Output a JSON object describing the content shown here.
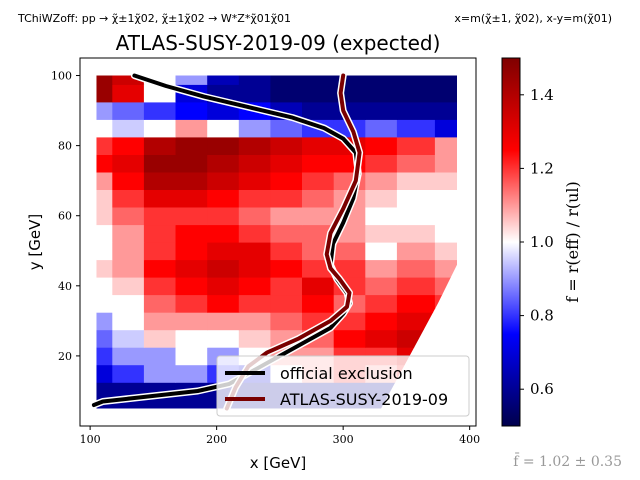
{
  "header": {
    "process_label": "TChiWZoff: pp → χ̃±1χ̃02, χ̃±1χ̃02 → W*Z*χ̃01χ̃01",
    "axis_definition": "x=m(χ̃±1, χ̃02), x-y=m(χ̃01)"
  },
  "footer": {
    "mean_ratio": "f̄ = 1.02 ± 0.35"
  },
  "colors": {
    "official_line": "#000000",
    "analysis_line": "#7a0000",
    "cmap_low": "#00004c",
    "cmap_mid": "#ffffff",
    "cmap_high": "#7f0000"
  },
  "chart_data": {
    "type": "heatmap",
    "title": "ATLAS-SUSY-2019-09 (expected)",
    "xlabel": "x [GeV]",
    "ylabel": "y [GeV]",
    "xlim": [
      92,
      405
    ],
    "ylim": [
      0,
      105
    ],
    "xticks": [
      100,
      200,
      300,
      400
    ],
    "yticks": [
      20,
      40,
      60,
      80,
      100
    ],
    "colorbar": {
      "label": "f = r(eff) / r(ul)",
      "range": [
        0.5,
        1.5
      ],
      "ticks": [
        "0.6",
        "0.8",
        "1.0",
        "1.2",
        "1.4"
      ],
      "tick_values": [
        0.6,
        0.8,
        1.0,
        1.2,
        1.4
      ]
    },
    "legend": {
      "location": "lower-right",
      "entries": [
        "official exclusion",
        "ATLAS-SUSY-2019-09"
      ]
    },
    "grid_x": [
      105,
      130,
      155,
      180,
      205,
      230,
      255,
      280,
      305,
      330,
      355,
      390
    ],
    "grid_y": [
      5,
      10,
      15,
      20,
      25,
      30,
      35,
      40,
      45,
      50,
      55,
      60,
      65,
      70,
      75,
      80,
      85,
      90,
      95,
      100
    ],
    "values": [
      [
        0.6,
        0.6,
        0.6,
        0.6,
        0.6,
        0.6,
        0.6,
        0.6,
        0.6,
        0.6,
        0.6,
        0.6
      ],
      [
        0.6,
        0.6,
        0.6,
        0.6,
        0.6,
        0.6,
        0.6,
        0.6,
        0.6,
        0.6,
        0.6,
        0.6
      ],
      [
        0.7,
        0.8,
        0.9,
        0.9,
        0.8,
        0.7,
        1.0,
        1.1,
        1.2,
        1.1,
        1.2,
        1.1
      ],
      [
        0.8,
        0.9,
        0.9,
        1.0,
        0.9,
        1.0,
        1.1,
        1.1,
        1.2,
        1.2,
        1.3,
        1.2
      ],
      [
        0.85,
        0.95,
        1.05,
        1.0,
        1.0,
        1.05,
        1.1,
        1.15,
        1.25,
        1.3,
        1.35,
        1.3
      ],
      [
        0.9,
        1.0,
        1.1,
        1.1,
        1.1,
        1.1,
        1.15,
        1.2,
        1.2,
        1.25,
        1.3,
        1.25
      ],
      [
        1.0,
        1.0,
        1.15,
        1.2,
        1.25,
        1.2,
        1.2,
        1.25,
        1.15,
        1.2,
        1.25,
        1.2
      ],
      [
        1.0,
        1.05,
        1.2,
        1.25,
        1.3,
        1.25,
        1.2,
        1.3,
        1.2,
        1.15,
        1.2,
        1.15
      ],
      [
        1.05,
        1.1,
        1.25,
        1.3,
        1.35,
        1.3,
        1.25,
        1.2,
        1.2,
        1.1,
        1.15,
        1.1
      ],
      [
        1.0,
        1.1,
        1.2,
        1.25,
        1.3,
        1.3,
        1.2,
        1.15,
        1.15,
        1.0,
        1.1,
        1.05
      ],
      [
        1.0,
        1.1,
        1.2,
        1.25,
        1.25,
        1.2,
        1.15,
        1.15,
        1.1,
        1.05,
        1.05,
        1.0
      ],
      [
        1.05,
        1.15,
        1.2,
        1.2,
        1.2,
        1.15,
        1.1,
        1.1,
        1.1,
        1.0,
        1.0,
        1.0
      ],
      [
        1.05,
        1.2,
        1.3,
        1.3,
        1.25,
        1.2,
        1.2,
        1.15,
        1.1,
        1.05,
        1.0,
        1.0
      ],
      [
        1.1,
        1.25,
        1.4,
        1.4,
        1.35,
        1.3,
        1.25,
        1.2,
        1.15,
        1.1,
        1.05,
        1.05
      ],
      [
        1.25,
        1.3,
        1.45,
        1.45,
        1.4,
        1.35,
        1.3,
        1.25,
        1.25,
        1.2,
        1.15,
        1.1
      ],
      [
        1.2,
        1.25,
        1.4,
        1.45,
        1.45,
        1.4,
        1.35,
        1.3,
        1.3,
        1.25,
        1.2,
        1.1
      ],
      [
        1.0,
        0.95,
        1.0,
        1.1,
        1.0,
        0.9,
        0.85,
        0.8,
        0.8,
        0.85,
        0.8,
        0.7
      ],
      [
        0.9,
        0.85,
        0.8,
        0.75,
        0.7,
        0.75,
        0.65,
        0.6,
        0.6,
        0.6,
        0.6,
        0.6
      ],
      [
        1.45,
        1.3,
        1.0,
        0.7,
        0.6,
        0.6,
        0.55,
        0.55,
        0.55,
        0.55,
        0.55,
        0.55
      ],
      [
        1.45,
        1.35,
        1.0,
        0.9,
        0.65,
        0.6,
        0.55,
        0.55,
        0.55,
        0.55,
        0.55,
        0.55
      ]
    ],
    "official_exclusion": {
      "x": [
        135,
        160,
        190,
        225,
        260,
        285,
        300,
        310,
        312,
        308,
        300,
        292,
        290,
        295,
        303,
        305,
        300,
        290,
        270,
        250,
        230,
        210,
        185,
        160,
        135,
        110,
        103
      ],
      "y": [
        100,
        97,
        94,
        91,
        88,
        85,
        82,
        78,
        72,
        65,
        58,
        52,
        46,
        42,
        38,
        35,
        32,
        28,
        24,
        20,
        16,
        12,
        10,
        9,
        8,
        7,
        6
      ]
    },
    "analysis_exclusion": {
      "x": [
        300,
        298,
        300,
        308,
        313,
        310,
        300,
        290,
        287,
        290,
        297,
        305,
        303,
        290,
        265,
        240,
        225,
        215,
        208
      ],
      "y": [
        100,
        95,
        90,
        84,
        78,
        70,
        62,
        55,
        49,
        45,
        42,
        38,
        34,
        30,
        25,
        21,
        17,
        11,
        5
      ]
    },
    "valid_region": {
      "x": [
        105,
        390,
        390,
        375,
        360,
        345,
        330,
        105
      ],
      "y": [
        100,
        100,
        46,
        35,
        25,
        15,
        5,
        5
      ]
    }
  }
}
